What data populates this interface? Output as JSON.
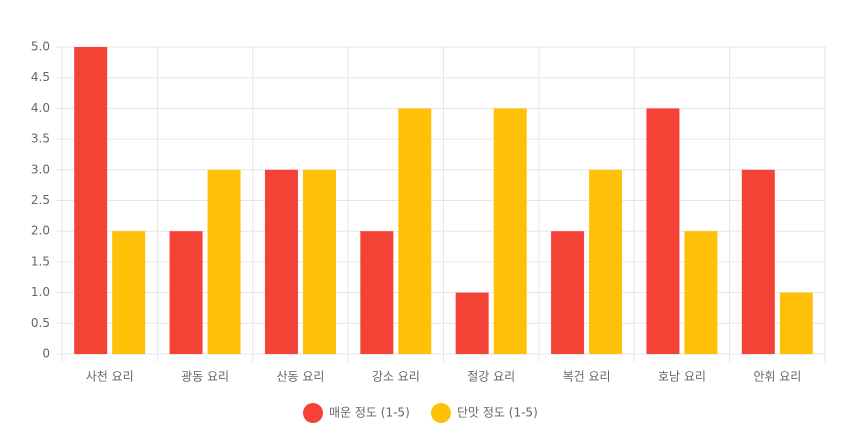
{
  "chart_data": {
    "type": "bar",
    "categories": [
      "사천 요리",
      "광동 요리",
      "산동 요리",
      "강소 요리",
      "절강 요리",
      "복건 요리",
      "호남 요리",
      "안휘 요리"
    ],
    "series": [
      {
        "name": "매운 정도 (1-5)",
        "color": "#f44336",
        "values": [
          5,
          2,
          3,
          2,
          1,
          2,
          4,
          3
        ]
      },
      {
        "name": "단맛 정도 (1-5)",
        "color": "#ffc107",
        "values": [
          2,
          3,
          3,
          4,
          4,
          3,
          2,
          1
        ]
      }
    ],
    "ylim": [
      0,
      5
    ],
    "yticks": [
      0,
      0.5,
      {
        "value": 1,
        "label": "1.0"
      },
      1.5,
      {
        "value": 2,
        "label": "2.0"
      },
      2.5,
      {
        "value": 3,
        "label": "3.0"
      },
      3.5,
      {
        "value": 4,
        "label": "4.0"
      },
      4.5,
      {
        "value": 5,
        "label": "5.0"
      }
    ],
    "grid": true,
    "legend": "bottom"
  }
}
